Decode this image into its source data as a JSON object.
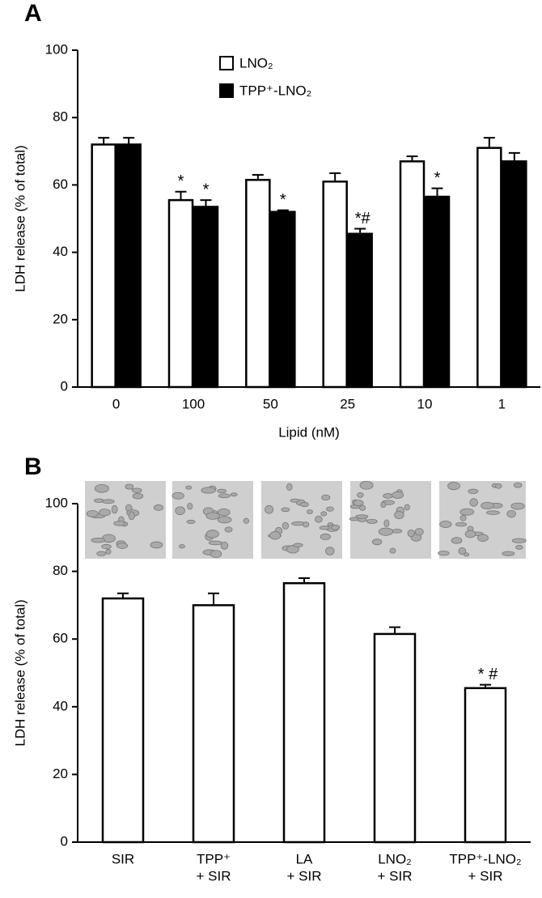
{
  "chart_data": [
    {
      "type": "bar",
      "panel_label": "A",
      "y_label": "LDH release (% of total)",
      "x_label": "Lipid (nM)",
      "categories": [
        [
          "0"
        ],
        [
          "100"
        ],
        [
          "50"
        ],
        [
          "25"
        ],
        [
          "10"
        ],
        [
          "1"
        ]
      ],
      "series": [
        {
          "name": "LNO₂",
          "color": "#ffffff",
          "values": [
            72,
            55.5,
            61.5,
            61,
            67,
            71
          ],
          "errors": [
            2,
            2.5,
            1.5,
            2.5,
            1.5,
            3
          ],
          "annotations": [
            null,
            "*",
            null,
            null,
            null,
            null
          ]
        },
        {
          "name": "TPP⁺-LNO₂",
          "color": "#000000",
          "values": [
            72,
            53.5,
            52,
            45.5,
            56.5,
            67
          ],
          "errors": [
            2,
            2,
            0.5,
            1.5,
            2.5,
            2.5
          ],
          "annotations": [
            null,
            "*",
            "*",
            "*#",
            "*",
            null
          ]
        }
      ],
      "ylim": [
        0,
        100
      ],
      "yticks": [
        0,
        20,
        40,
        60,
        80,
        100
      ]
    },
    {
      "type": "bar",
      "panel_label": "B",
      "y_label": "LDH release (% of total)",
      "categories": [
        [
          "SIR"
        ],
        [
          "TPP⁺",
          "+ SIR"
        ],
        [
          "LA",
          "+ SIR"
        ],
        [
          "LNO₂",
          "+ SIR"
        ],
        [
          "TPP⁺-LNO₂",
          "+ SIR"
        ]
      ],
      "series": [
        {
          "color": "#ffffff",
          "values": [
            72,
            70,
            76.5,
            61.5,
            45.5
          ],
          "errors": [
            1.5,
            3.5,
            1.5,
            2,
            1
          ],
          "annotations": [
            null,
            null,
            null,
            null,
            "* #"
          ]
        }
      ],
      "ylim": [
        0,
        100
      ],
      "yticks": [
        0,
        20,
        40,
        60,
        80,
        100
      ]
    }
  ]
}
